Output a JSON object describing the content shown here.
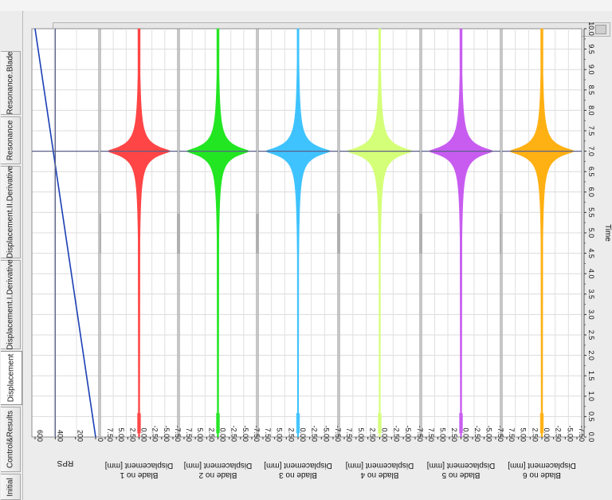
{
  "tabs": [
    {
      "label": "Initial",
      "active": false
    },
    {
      "label": "Control&Results",
      "active": false
    },
    {
      "label": "Displacement",
      "active": true
    },
    {
      "label": "Displacement.I.Derivative",
      "active": false
    },
    {
      "label": "Displacement.II.Derivative",
      "active": false
    },
    {
      "label": "Resonance",
      "active": false
    },
    {
      "label": "Resonance.Blade",
      "active": false
    }
  ],
  "time_axis": {
    "label": "Time",
    "ticks": [
      "0.0",
      "0.5",
      "1.0",
      "1.5",
      "2.0",
      "2.5",
      "3.0",
      "3.5",
      "4.0",
      "4.5",
      "5.0",
      "5.5",
      "6.0",
      "6.5",
      "7.0",
      "7.5",
      "8.0",
      "8.5",
      "9.0",
      "9.5",
      "10.0"
    ],
    "range": [
      0,
      10
    ]
  },
  "rps_panel": {
    "axis_label": "RPS",
    "ticks": [
      "600",
      "400",
      "200",
      "0"
    ],
    "range": [
      0,
      600
    ],
    "line": {
      "color": "#1a3fb5",
      "t_start": 0,
      "rps_start": 0,
      "t_end": 10,
      "rps_end": 600
    },
    "resonance_rps": 400
  },
  "resonance_time": 7.0,
  "displacement_ticks": [
    "7.50",
    "5.00",
    "2.50",
    "0.00",
    "-2.50",
    "-5.00",
    "-7.50"
  ],
  "displacement_range": [
    -7.5,
    7.5
  ],
  "cursor_color": "#5a5f8a",
  "chart_data": [
    {
      "type": "area",
      "title": "Blade no 1",
      "color": "#ff4545",
      "ylabel": "Displacement [mm]",
      "xlabel": "Time",
      "xlim": [
        0,
        10
      ],
      "ylim": [
        -7.5,
        7.5
      ],
      "peak_time": 7.0,
      "peak_amplitude": 7.0,
      "base_amplitude": 0.25
    },
    {
      "type": "area",
      "title": "Blade no 2",
      "color": "#22e622",
      "ylabel": "Displacement [mm]",
      "xlabel": "Time",
      "xlim": [
        0,
        10
      ],
      "ylim": [
        -7.5,
        7.5
      ],
      "peak_time": 7.0,
      "peak_amplitude": 7.0,
      "base_amplitude": 0.25
    },
    {
      "type": "area",
      "title": "Blade no 3",
      "color": "#3fc3ff",
      "ylabel": "Displacement [mm]",
      "xlabel": "Time",
      "xlim": [
        0,
        10
      ],
      "ylim": [
        -7.5,
        7.5
      ],
      "peak_time": 7.0,
      "peak_amplitude": 7.0,
      "base_amplitude": 0.2
    },
    {
      "type": "area",
      "title": "Blade no 4",
      "color": "#d4ff78",
      "ylabel": "Displacement [mm]",
      "xlabel": "Time",
      "xlim": [
        0,
        10
      ],
      "ylim": [
        -7.5,
        7.5
      ],
      "peak_time": 7.0,
      "peak_amplitude": 7.0,
      "base_amplitude": 0.2
    },
    {
      "type": "area",
      "title": "Blade no 5",
      "color": "#c85cf0",
      "ylabel": "Displacement [mm]",
      "xlabel": "Time",
      "xlim": [
        0,
        10
      ],
      "ylim": [
        -7.5,
        7.5
      ],
      "peak_time": 7.0,
      "peak_amplitude": 7.0,
      "base_amplitude": 0.25
    },
    {
      "type": "area",
      "title": "Blade no 6",
      "color": "#ffb012",
      "ylabel": "Displacement [mm]",
      "xlabel": "Time",
      "xlim": [
        0,
        10
      ],
      "ylim": [
        -7.5,
        7.5
      ],
      "peak_time": 7.0,
      "peak_amplitude": 7.0,
      "base_amplitude": 0.25
    }
  ]
}
